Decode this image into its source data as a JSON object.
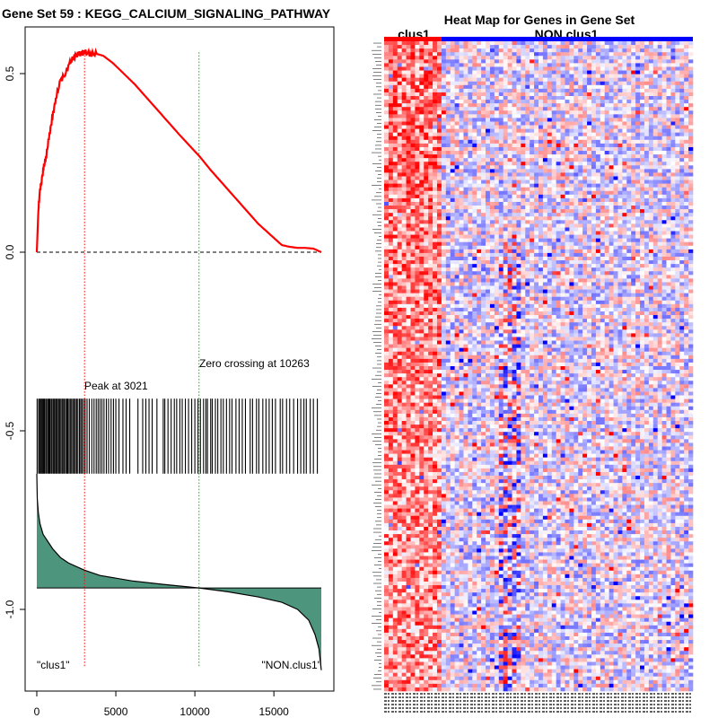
{
  "chart_data": [
    {
      "type": "line",
      "title": "Gene Set  59 : KEGG_CALCIUM_SIGNALING_PATHWAY",
      "xlim": [
        0,
        18000
      ],
      "ylim": [
        -1.2,
        0.6
      ],
      "xticks": [
        0,
        5000,
        10000,
        15000
      ],
      "xtick_labels": [
        "0",
        "5000",
        "10000",
        "15000"
      ],
      "yticks": [
        -1.0,
        -0.5,
        0.0,
        0.5
      ],
      "ytick_labels": [
        "-1.0",
        "-0.5",
        "0.0",
        "0.5"
      ],
      "running_es": {
        "color": "#ff0000",
        "x": [
          0,
          100,
          200,
          300,
          450,
          600,
          800,
          1000,
          1200,
          1500,
          1800,
          2100,
          2400,
          2700,
          3021,
          3400,
          3800,
          4200,
          4800,
          5500,
          6200,
          7000,
          8000,
          9000,
          10263,
          11000,
          12000,
          13000,
          14000,
          15000,
          15500,
          16000,
          16500,
          17000,
          17500,
          18000
        ],
        "y": [
          0.0,
          0.12,
          0.17,
          0.2,
          0.24,
          0.27,
          0.33,
          0.38,
          0.43,
          0.48,
          0.5,
          0.53,
          0.55,
          0.555,
          0.56,
          0.555,
          0.555,
          0.55,
          0.53,
          0.5,
          0.47,
          0.43,
          0.38,
          0.33,
          0.27,
          0.23,
          0.18,
          0.13,
          0.08,
          0.04,
          0.02,
          0.015,
          0.012,
          0.012,
          0.01,
          0.0
        ]
      },
      "baseline_y": 0.0,
      "peak": {
        "x": 3021,
        "label": "Peak at 3021",
        "color": "#ff0000"
      },
      "zero_crossing": {
        "x": 10263,
        "label": "Zero crossing at 10263",
        "color": "#00bb00"
      },
      "hit_band": {
        "y_top": -0.41,
        "y_bottom": -0.62
      },
      "hits": [
        20,
        120,
        180,
        240,
        300,
        360,
        420,
        480,
        560,
        620,
        700,
        760,
        820,
        900,
        960,
        1040,
        1100,
        1180,
        1240,
        1300,
        1380,
        1440,
        1520,
        1600,
        1660,
        1740,
        1820,
        1900,
        1960,
        2040,
        2120,
        2200,
        2280,
        2360,
        2440,
        2520,
        2600,
        2700,
        2780,
        2860,
        2960,
        3060,
        3180,
        3320,
        3480,
        3620,
        3760,
        3880,
        4000,
        4120,
        4250,
        4400,
        4540,
        4700,
        4850,
        5000,
        5200,
        5450,
        5650,
        5880,
        6400,
        6700,
        6900,
        7100,
        7300,
        7600,
        8000,
        8100,
        8300,
        8500,
        8700,
        8850,
        9050,
        9200,
        9400,
        9600,
        9800,
        10000,
        10200,
        10350,
        10550,
        10700,
        10800,
        11000,
        11100,
        11300,
        11450,
        11650,
        11800,
        12000,
        12200,
        12350,
        12600,
        12800,
        13000,
        13200,
        13500,
        13650,
        13900,
        14050,
        14300,
        14500,
        14700,
        14900,
        15100,
        15400,
        15550,
        15800,
        16000,
        16250,
        16500,
        16700,
        16900,
        17050,
        17300,
        17500,
        17750
      ],
      "ranked_metric": {
        "fill": "#4d957c",
        "zero_y": -0.94,
        "x": [
          0,
          30,
          100,
          200,
          400,
          700,
          1000,
          1500,
          2000,
          3000,
          4000,
          6000,
          8000,
          10263,
          12000,
          14000,
          15500,
          16500,
          17200,
          17600,
          17850,
          18000
        ],
        "y": [
          -0.62,
          -0.69,
          -0.73,
          -0.76,
          -0.79,
          -0.81,
          -0.83,
          -0.855,
          -0.87,
          -0.89,
          -0.905,
          -0.92,
          -0.93,
          -0.94,
          -0.95,
          -0.965,
          -0.98,
          -1.0,
          -1.03,
          -1.07,
          -1.11,
          -1.17
        ]
      },
      "annotations": {
        "left_label": "\"clus1\"",
        "right_label": "\"NON.clus1\"",
        "label_y": -1.15
      }
    },
    {
      "type": "heatmap",
      "title": "Heat Map for Genes in Gene Set",
      "columns": 70,
      "rows": 178,
      "groups": [
        {
          "label": "clus1",
          "start": 0,
          "count": 13,
          "color": "#ff0000"
        },
        {
          "label": "NON.clus1",
          "start": 13,
          "count": 57,
          "color": "#0000ff"
        }
      ],
      "colors": {
        "high": "#ff0000",
        "mid": "#ffffff",
        "low": "#0000ff"
      }
    }
  ]
}
